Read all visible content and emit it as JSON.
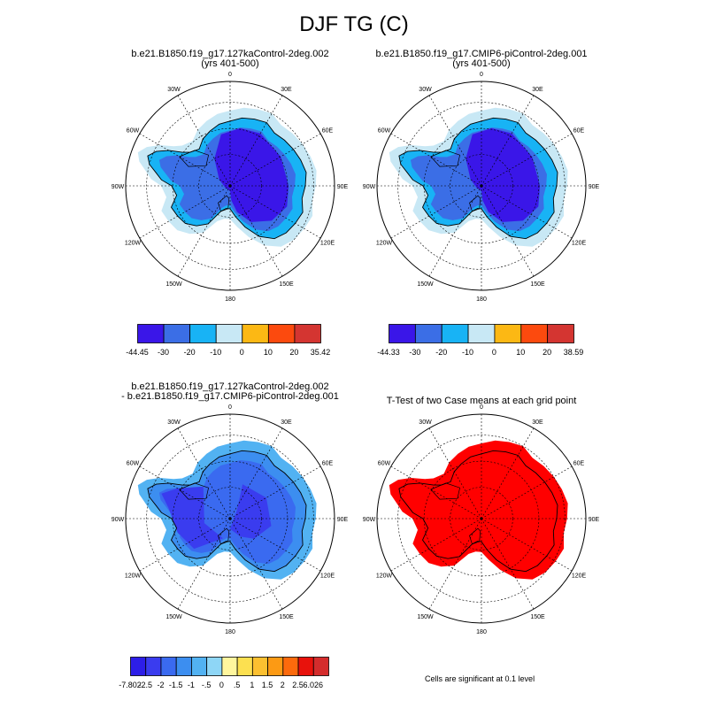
{
  "title": "DJF TG (C)",
  "panels": {
    "p1": {
      "title1": "b.e21.B1850.f19_g17.127kaControl-2deg.002",
      "title2": "(yrs 401-500)"
    },
    "p2": {
      "title1": "b.e21.B1850.f19_g17.CMIP6-piControl-2deg.001",
      "title2": "(yrs 401-500)"
    },
    "p3": {
      "title1": "b.e21.B1850.f19_g17.127kaControl-2deg.002",
      "title2": "- b.e21.B1850.f19_g17.CMIP6-piControl-2deg.001"
    },
    "p4": {
      "title1": "T-Test of two Case means at each grid point"
    }
  },
  "map_labels": {
    "lon_0": "0",
    "lon_30e": "30E",
    "lon_60e": "60E",
    "lon_90e": "90E",
    "lon_120e": "120E",
    "lon_150e": "150E",
    "lon_180": "180",
    "lon_150w": "150W",
    "lon_120w": "120W",
    "lon_90w": "90W",
    "lon_60w": "60W",
    "lon_30w": "30W"
  },
  "colorbars": {
    "cb1": {
      "labels": [
        "-44.45",
        "-30",
        "-20",
        "-10",
        "0",
        "10",
        "20",
        "35.42"
      ],
      "colors": [
        "#3a16e8",
        "#3b6ee6",
        "#18b3f5",
        "#c8e8f5",
        "#fcb814",
        "#fc4a0e",
        "#d43531"
      ]
    },
    "cb2": {
      "labels": [
        "-44.33",
        "-30",
        "-20",
        "-10",
        "0",
        "10",
        "20",
        "38.59"
      ],
      "colors": [
        "#3a16e8",
        "#3b6ee6",
        "#18b3f5",
        "#c8e8f5",
        "#fcb814",
        "#fc4a0e",
        "#d43531"
      ]
    },
    "cb3": {
      "labels": [
        "-7.802",
        "-2.5",
        "-2",
        "-1.5",
        "-1",
        "-.5",
        "0",
        ".5",
        "1",
        "1.5",
        "2",
        "2.5",
        "6.026"
      ],
      "colors": [
        "#2d1ee8",
        "#3a3cef",
        "#3a6af0",
        "#3c8ef0",
        "#52b2f2",
        "#8ed6f6",
        "#fff69e",
        "#fce050",
        "#fcc030",
        "#fc9a14",
        "#fc6a0c",
        "#e8120c",
        "#d42c2c"
      ]
    }
  },
  "significance_note": "Cells are significant at 0.1 level",
  "colors": {
    "sig_red": "#ff0000"
  }
}
